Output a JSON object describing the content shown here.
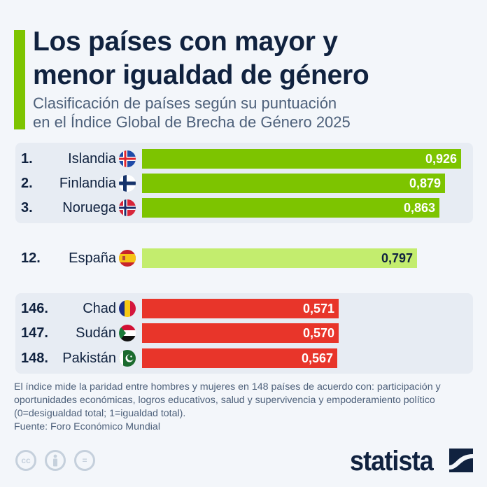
{
  "header": {
    "title_line1": "Los países con mayor y",
    "title_line2": "menor igualdad de género",
    "subtitle_line1": "Clasificación de países según su puntuación",
    "subtitle_line2": "en el Índice Global de Brecha de Género 2025"
  },
  "chart_data": {
    "type": "bar",
    "orientation": "horizontal",
    "title": "Los países con mayor y menor igualdad de género",
    "subtitle": "Clasificación de países según su puntuación en el Índice Global de Brecha de Género 2025",
    "xlabel": "",
    "ylabel": "",
    "xlim": [
      0,
      1
    ],
    "grid": false,
    "groups": [
      {
        "name": "top",
        "items": [
          {
            "rank": "1.",
            "country": "Islandia",
            "flag": "iceland-flag-icon",
            "value": 0.926,
            "label": "0,926",
            "color": "#7dc400"
          },
          {
            "rank": "2.",
            "country": "Finlandia",
            "flag": "finland-flag-icon",
            "value": 0.879,
            "label": "0,879",
            "color": "#7dc400"
          },
          {
            "rank": "3.",
            "country": "Noruega",
            "flag": "norway-flag-icon",
            "value": 0.863,
            "label": "0,863",
            "color": "#7dc400"
          }
        ]
      },
      {
        "name": "spain",
        "items": [
          {
            "rank": "12.",
            "country": "España",
            "flag": "spain-flag-icon",
            "value": 0.797,
            "label": "0,797",
            "color": "#c3ed6e"
          }
        ]
      },
      {
        "name": "bottom",
        "items": [
          {
            "rank": "146.",
            "country": "Chad",
            "flag": "chad-flag-icon",
            "value": 0.571,
            "label": "0,571",
            "color": "#e8352a"
          },
          {
            "rank": "147.",
            "country": "Sudán",
            "flag": "sudan-flag-icon",
            "value": 0.57,
            "label": "0,570",
            "color": "#e8352a"
          },
          {
            "rank": "148.",
            "country": "Pakistán",
            "flag": "pakistan-flag-icon",
            "value": 0.567,
            "label": "0,567",
            "color": "#e8352a"
          }
        ]
      }
    ]
  },
  "footer": {
    "note": "El índice mide la paridad entre hombres y mujeres en 148 países de acuerdo con: participación y oportunidades económicas, logros educativos, salud y supervivencia y empoderamiento político (0=desigualdad total; 1=igualdad total).",
    "source": "Fuente: Foro Económico Mundial",
    "cc_labels": [
      "cc",
      "by",
      "="
    ],
    "logo": "statista"
  }
}
